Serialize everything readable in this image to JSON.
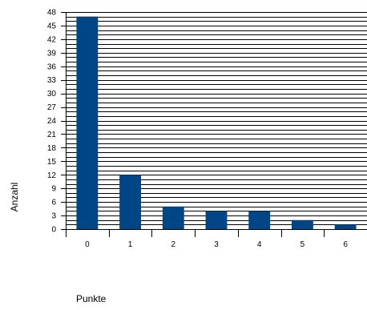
{
  "chart_data": {
    "type": "bar",
    "title": "",
    "xlabel": "Punkte",
    "ylabel": "Anzahl",
    "categories": [
      "0",
      "1",
      "2",
      "3",
      "4",
      "5",
      "6"
    ],
    "values": [
      47,
      12,
      5,
      4,
      4,
      2,
      1
    ],
    "ylim": [
      0,
      48
    ],
    "grid_step": 1,
    "y_ticks": [
      0,
      3,
      6,
      9,
      12,
      15,
      18,
      21,
      24,
      27,
      30,
      33,
      36,
      39,
      42,
      45,
      48
    ],
    "grid": true,
    "legend": "none",
    "bar_color": "#004586"
  }
}
